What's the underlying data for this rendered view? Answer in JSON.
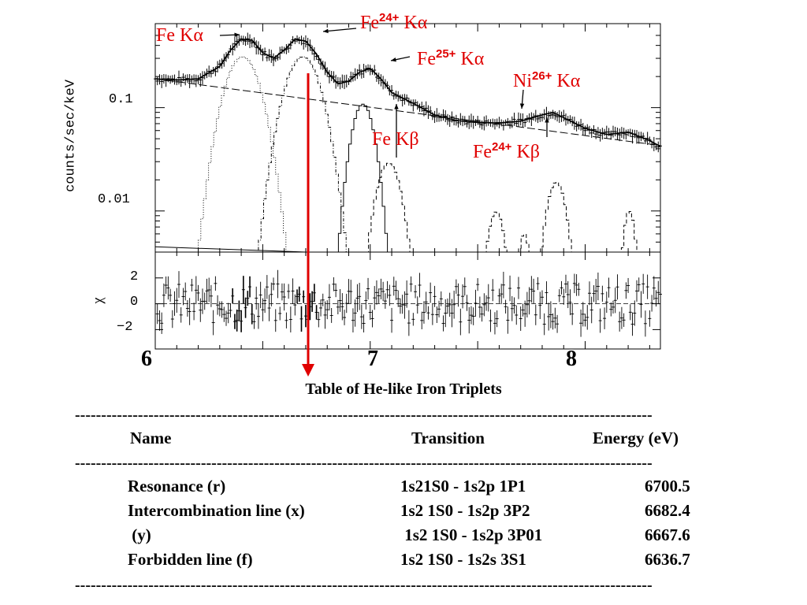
{
  "chart_data": {
    "type": "line",
    "panels": [
      {
        "name": "spectrum",
        "ylabel": "counts/sec/keV",
        "yscale": "log",
        "ylim": [
          0.004,
          0.65
        ],
        "yticks": [
          "0.1",
          "0.01"
        ],
        "series_data": {
          "x": [
            6.0,
            6.1,
            6.2,
            6.3,
            6.35,
            6.4,
            6.45,
            6.5,
            6.55,
            6.6,
            6.65,
            6.7,
            6.75,
            6.8,
            6.85,
            6.9,
            6.95,
            7.0,
            7.05,
            7.1,
            7.2,
            7.3,
            7.4,
            7.5,
            7.6,
            7.7,
            7.8,
            7.85,
            7.9,
            8.0,
            8.1,
            8.2,
            8.3,
            8.35
          ],
          "y": [
            0.19,
            0.185,
            0.19,
            0.25,
            0.36,
            0.46,
            0.45,
            0.34,
            0.3,
            0.36,
            0.46,
            0.44,
            0.33,
            0.22,
            0.17,
            0.18,
            0.22,
            0.24,
            0.19,
            0.14,
            0.11,
            0.085,
            0.075,
            0.072,
            0.071,
            0.074,
            0.085,
            0.09,
            0.08,
            0.063,
            0.055,
            0.058,
            0.048,
            0.042
          ]
        },
        "continuum": {
          "x": [
            6.0,
            8.35
          ],
          "y": [
            0.19,
            0.043
          ]
        },
        "lines": [
          {
            "center": 6.4,
            "peak": 0.31,
            "sigma": 0.07
          },
          {
            "center": 6.68,
            "peak": 0.31,
            "sigma": 0.07
          },
          {
            "center": 6.96,
            "peak": 0.108,
            "sigma": 0.045
          },
          {
            "center": 7.08,
            "peak": 0.029,
            "sigma": 0.05
          },
          {
            "center": 7.58,
            "peak": 0.0098,
            "sigma": 0.035
          },
          {
            "center": 7.71,
            "peak": 0.006,
            "sigma": 0.025
          },
          {
            "center": 7.86,
            "peak": 0.019,
            "sigma": 0.04
          },
          {
            "center": 8.2,
            "peak": 0.01,
            "sigma": 0.025
          }
        ],
        "annotations": [
          {
            "text": "Fe Kα",
            "parts": [
              "Fe Kα"
            ]
          },
          {
            "text": "Fe24+ Kα",
            "parts": [
              "Fe",
              "24+",
              " Kα"
            ]
          },
          {
            "text": "Fe25+ Kα",
            "parts": [
              "Fe",
              "25+",
              " Kα"
            ]
          },
          {
            "text": "Ni26+ Kα",
            "parts": [
              "Ni",
              "26+",
              " Kα"
            ]
          },
          {
            "text": "Fe Kβ",
            "parts": [
              "Fe Kβ"
            ]
          },
          {
            "text": "Fe24+ Kβ",
            "parts": [
              "Fe",
              "24+",
              " Kβ"
            ]
          }
        ]
      },
      {
        "name": "residuals",
        "ylabel": "χ",
        "ylim": [
          -3.5,
          4
        ],
        "yticks": [
          "2",
          "0",
          "−2"
        ]
      }
    ],
    "xlim": [
      6.0,
      8.35
    ],
    "xticks": [
      "6",
      "7",
      "8"
    ],
    "xlabel": "",
    "marker_energy": 6.7
  },
  "table": {
    "title": "Table of He-like Iron Triplets",
    "dashes": "--------------------------------------------------------------------------------------------------------------",
    "headers": {
      "name": "Name",
      "transition": "Transition",
      "energy": "Energy (eV)"
    },
    "rows": [
      {
        "name": "Resonance (r)",
        "transition": "1s21S0 - 1s2p 1P1",
        "energy": "6700.5"
      },
      {
        "name": "Intercombination line (x)",
        "transition": "1s2 1S0 - 1s2p 3P2",
        "energy": "6682.4"
      },
      {
        "name": " (y)",
        "transition": " 1s2 1S0 - 1s2p 3P01",
        "energy": "6667.6"
      },
      {
        "name": "Forbidden line (f)",
        "transition": "1s2 1S0 - 1s2s 3S1",
        "energy": "6636.7"
      }
    ]
  }
}
